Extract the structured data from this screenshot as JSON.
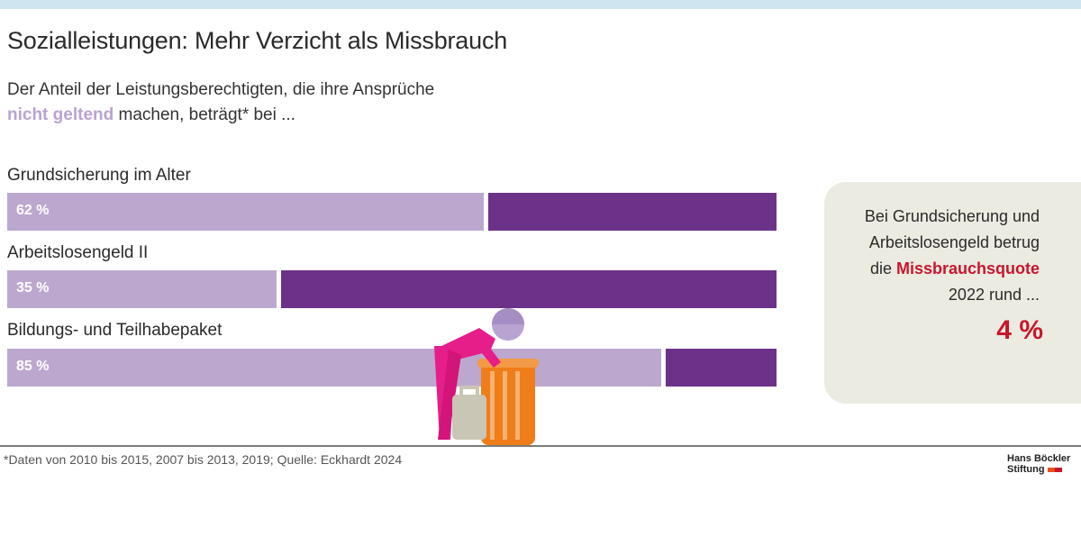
{
  "title": "Sozialleistungen: Mehr Verzicht als Missbrauch",
  "subtitle": {
    "line1": "Der Anteil der Leistungsberechtigten, die ihre Ansprüche",
    "highlight": "nicht geltend",
    "line2_rest": " machen, beträgt* bei ..."
  },
  "colors": {
    "not_claimed": "#bca8cf",
    "claimed": "#6c3289",
    "accent_red": "#c8162c",
    "info_box_bg": "#ecebe1"
  },
  "chart_data": {
    "type": "bar",
    "orientation": "horizontal",
    "stacked": true,
    "unit": "%",
    "categories": [
      "Grundsicherung im Alter",
      "Arbeitslosengeld II",
      "Bildungs- und Teilhabepaket"
    ],
    "series": [
      {
        "name": "nicht geltend",
        "values": [
          62,
          35,
          85
        ]
      },
      {
        "name": "geltend",
        "values": [
          38,
          65,
          15
        ]
      }
    ],
    "value_labels": [
      "62 %",
      "35 %",
      "85 %"
    ],
    "xlim": [
      0,
      100
    ]
  },
  "info_box": {
    "line1": "Bei Grundsicherung und",
    "line2": "Arbeitslosengeld betrug",
    "line3_prefix": "die ",
    "line3_highlight": "Missbrauchsquote",
    "line4": "2022 rund ...",
    "value": "4 %"
  },
  "footnote": "*Daten von 2010 bis 2015, 2007 bis 2013, 2019; Quelle: Eckhardt 2024",
  "logo": {
    "line1": "Hans Böckler",
    "line2": "Stiftung"
  }
}
